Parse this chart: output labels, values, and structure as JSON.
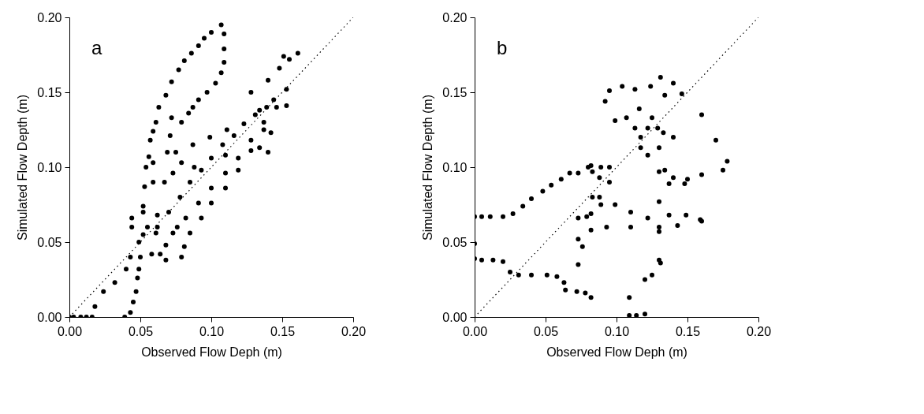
{
  "chart_data": [
    {
      "type": "scatter",
      "xlabel": "Observed Flow Deph (m)",
      "ylabel": "Simulated Flow Depth (m)",
      "annotations": [
        "a"
      ],
      "xlim": [
        0,
        0.2
      ],
      "ylim": [
        0,
        0.2
      ],
      "xticks": [
        {
          "value": 0,
          "label": "0.00"
        },
        {
          "value": 0.05,
          "label": "0.05"
        },
        {
          "value": 0.1,
          "label": "0.10"
        },
        {
          "value": 0.15,
          "label": "0.15"
        },
        {
          "value": 0.2,
          "label": "0.20"
        }
      ],
      "yticks": [
        {
          "value": 0,
          "label": "0.00"
        },
        {
          "value": 0.05,
          "label": "0.05"
        },
        {
          "value": 0.1,
          "label": "0.10"
        },
        {
          "value": 0.15,
          "label": "0.15"
        },
        {
          "value": 0.2,
          "label": "0.20"
        }
      ],
      "grid": false,
      "marker": "circle",
      "series": [
        {
          "color": "#000000",
          "x": [
            0.039,
            0.043,
            0.045,
            0.047,
            0.048,
            0.05,
            0.052,
            0.052,
            0.053,
            0.054,
            0.056,
            0.057,
            0.059,
            0.061,
            0.063,
            0.068,
            0.072,
            0.077,
            0.081,
            0.086,
            0.091,
            0.095,
            0.1,
            0.107,
            0.109,
            0.109,
            0.109,
            0.107,
            0.103,
            0.097,
            0.091,
            0.087,
            0.084,
            0.079,
            0.072,
            0.071,
            0.069,
            0.075,
            0.087,
            0.099,
            0.111,
            0.123,
            0.134,
            0.144,
            0.153,
            0.14,
            0.148,
            0.155,
            0.161,
            0.151,
            0.059,
            0.059,
            0.0,
            0.003,
            0.008,
            0.012,
            0.016,
            0.018,
            0.024,
            0.032,
            0.04,
            0.043,
            0.049,
            0.055,
            0.062,
            0.044,
            0.044,
            0.052,
            0.049,
            0.058,
            0.064,
            0.068,
            0.079,
            0.081,
            0.085,
            0.093,
            0.1,
            0.11,
            0.119,
            0.128,
            0.137,
            0.146,
            0.153,
            0.062,
            0.07,
            0.078,
            0.085,
            0.093,
            0.1,
            0.108,
            0.116,
            0.131,
            0.139,
            0.073,
            0.082,
            0.091,
            0.1,
            0.11,
            0.119,
            0.128,
            0.137,
            0.079,
            0.088,
            0.11,
            0.134,
            0.14,
            0.142,
            0.067,
            0.073,
            0.061,
            0.068,
            0.076,
            0.128
          ],
          "values": [
            0.0,
            0.003,
            0.01,
            0.017,
            0.026,
            0.04,
            0.055,
            0.074,
            0.087,
            0.1,
            0.107,
            0.118,
            0.124,
            0.13,
            0.14,
            0.148,
            0.157,
            0.165,
            0.171,
            0.176,
            0.181,
            0.186,
            0.19,
            0.195,
            0.189,
            0.179,
            0.17,
            0.163,
            0.156,
            0.15,
            0.145,
            0.14,
            0.136,
            0.13,
            0.133,
            0.121,
            0.11,
            0.11,
            0.115,
            0.12,
            0.125,
            0.129,
            0.138,
            0.145,
            0.152,
            0.158,
            0.166,
            0.172,
            0.176,
            0.174,
            0.103,
            0.09,
            0.0,
            0.0,
            0.0,
            0.0,
            0.0,
            0.007,
            0.017,
            0.023,
            0.032,
            0.04,
            0.05,
            0.06,
            0.068,
            0.06,
            0.066,
            0.07,
            0.032,
            0.042,
            0.042,
            0.038,
            0.04,
            0.047,
            0.056,
            0.066,
            0.076,
            0.086,
            0.098,
            0.111,
            0.125,
            0.14,
            0.141,
            0.06,
            0.07,
            0.08,
            0.09,
            0.098,
            0.106,
            0.115,
            0.121,
            0.135,
            0.14,
            0.056,
            0.066,
            0.076,
            0.086,
            0.096,
            0.106,
            0.118,
            0.13,
            0.103,
            0.1,
            0.108,
            0.113,
            0.11,
            0.123,
            0.09,
            0.096,
            0.056,
            0.048,
            0.06,
            0.15
          ]
        },
        {
          "type": "line",
          "color": "#000000",
          "line_style": "dotted",
          "marker": "none",
          "x": [
            0,
            0.2
          ],
          "values": [
            0,
            0.2
          ]
        }
      ]
    },
    {
      "type": "scatter",
      "xlabel": "Observed Flow Deph (m)",
      "ylabel": "Simulated Flow Depth (m)",
      "annotations": [
        "b"
      ],
      "xlim": [
        0,
        0.2
      ],
      "ylim": [
        0,
        0.2
      ],
      "xticks": [
        {
          "value": 0,
          "label": "0.00"
        },
        {
          "value": 0.05,
          "label": "0.05"
        },
        {
          "value": 0.1,
          "label": "0.10"
        },
        {
          "value": 0.15,
          "label": "0.15"
        },
        {
          "value": 0.2,
          "label": "0.20"
        }
      ],
      "yticks": [
        {
          "value": 0,
          "label": "0.00"
        },
        {
          "value": 0.05,
          "label": "0.05"
        },
        {
          "value": 0.1,
          "label": "0.10"
        },
        {
          "value": 0.15,
          "label": "0.15"
        },
        {
          "value": 0.2,
          "label": "0.20"
        }
      ],
      "grid": false,
      "marker": "circle",
      "series": [
        {
          "color": "#000000",
          "x": [
            0.0,
            0.0,
            0.0,
            0.005,
            0.011,
            0.02,
            0.027,
            0.034,
            0.04,
            0.048,
            0.054,
            0.061,
            0.067,
            0.073,
            0.08,
            0.082,
            0.089,
            0.095,
            0.095,
            0.088,
            0.083,
            0.083,
            0.082,
            0.079,
            0.082,
            0.005,
            0.013,
            0.02,
            0.025,
            0.031,
            0.04,
            0.051,
            0.058,
            0.063,
            0.064,
            0.072,
            0.078,
            0.082,
            0.073,
            0.073,
            0.073,
            0.076,
            0.088,
            0.089,
            0.099,
            0.11,
            0.122,
            0.137,
            0.149,
            0.159,
            0.093,
            0.11,
            0.13,
            0.143,
            0.16,
            0.13,
            0.13,
            0.13,
            0.13,
            0.13,
            0.129,
            0.131,
            0.125,
            0.12,
            0.12,
            0.114,
            0.109,
            0.109,
            0.092,
            0.095,
            0.104,
            0.113,
            0.124,
            0.131,
            0.14,
            0.146,
            0.134,
            0.099,
            0.107,
            0.113,
            0.117,
            0.122,
            0.133,
            0.14,
            0.116,
            0.125,
            0.117,
            0.122,
            0.134,
            0.14,
            0.137,
            0.148,
            0.16,
            0.17,
            0.178,
            0.175,
            0.16,
            0.15
          ],
          "values": [
            0.067,
            0.049,
            0.039,
            0.067,
            0.067,
            0.067,
            0.069,
            0.074,
            0.079,
            0.084,
            0.088,
            0.092,
            0.096,
            0.096,
            0.1,
            0.101,
            0.1,
            0.1,
            0.09,
            0.093,
            0.097,
            0.08,
            0.069,
            0.067,
            0.058,
            0.038,
            0.038,
            0.037,
            0.03,
            0.028,
            0.028,
            0.028,
            0.027,
            0.023,
            0.018,
            0.017,
            0.016,
            0.013,
            0.066,
            0.052,
            0.035,
            0.047,
            0.08,
            0.075,
            0.075,
            0.07,
            0.066,
            0.068,
            0.068,
            0.065,
            0.06,
            0.06,
            0.06,
            0.061,
            0.064,
            0.038,
            0.057,
            0.077,
            0.097,
            0.113,
            0.126,
            0.036,
            0.028,
            0.025,
            0.002,
            0.001,
            0.001,
            0.013,
            0.144,
            0.151,
            0.154,
            0.152,
            0.154,
            0.16,
            0.156,
            0.149,
            0.148,
            0.131,
            0.133,
            0.126,
            0.12,
            0.126,
            0.123,
            0.12,
            0.139,
            0.133,
            0.113,
            0.108,
            0.098,
            0.093,
            0.089,
            0.089,
            0.135,
            0.118,
            0.104,
            0.098,
            0.095,
            0.092
          ]
        },
        {
          "type": "line",
          "color": "#000000",
          "line_style": "dotted",
          "marker": "none",
          "x": [
            0,
            0.2
          ],
          "values": [
            0,
            0.2
          ]
        }
      ]
    }
  ]
}
